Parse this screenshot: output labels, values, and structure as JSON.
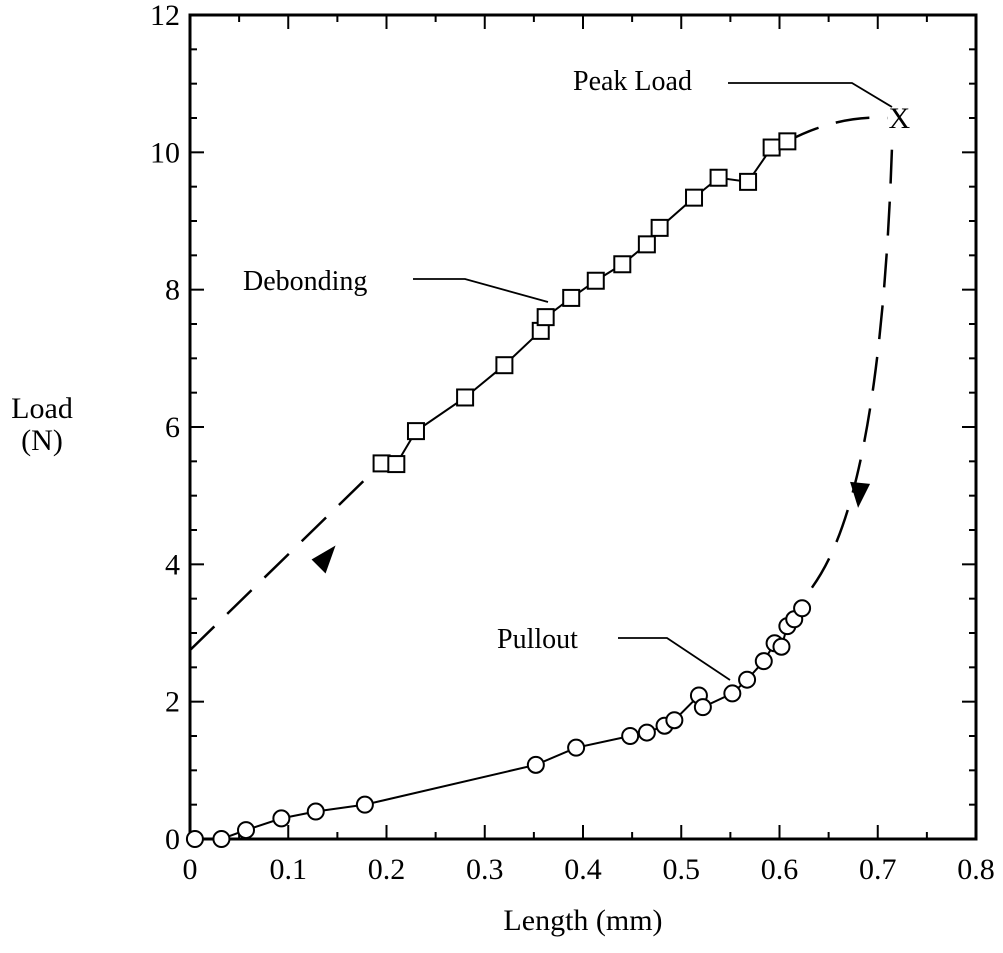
{
  "chart_data": {
    "type": "scatter",
    "title": "",
    "xlabel": "Length (mm)",
    "ylabel": [
      "Load",
      "(N)"
    ],
    "xlim": [
      0,
      0.8
    ],
    "ylim": [
      0,
      12
    ],
    "xticks": [
      "0",
      "0.1",
      "0.2",
      "0.3",
      "0.4",
      "0.5",
      "0.6",
      "0.7",
      "0.8"
    ],
    "yticks": [
      "0",
      "2",
      "4",
      "6",
      "8",
      "10",
      "12"
    ],
    "grid": false,
    "series": [
      {
        "marker": "square",
        "points": [
          [
            0.195,
            5.47
          ],
          [
            0.21,
            5.46
          ],
          [
            0.23,
            5.94
          ],
          [
            0.28,
            6.43
          ],
          [
            0.32,
            6.9
          ],
          [
            0.357,
            7.4
          ],
          [
            0.362,
            7.6
          ],
          [
            0.388,
            7.88
          ],
          [
            0.413,
            8.13
          ],
          [
            0.44,
            8.37
          ],
          [
            0.465,
            8.66
          ],
          [
            0.478,
            8.9
          ],
          [
            0.513,
            9.34
          ],
          [
            0.538,
            9.63
          ],
          [
            0.568,
            9.57
          ],
          [
            0.592,
            10.07
          ],
          [
            0.608,
            10.16
          ]
        ]
      },
      {
        "marker": "circle",
        "points": [
          [
            0.005,
            0.0
          ],
          [
            0.032,
            0.0
          ],
          [
            0.057,
            0.13
          ],
          [
            0.093,
            0.3
          ],
          [
            0.128,
            0.4
          ],
          [
            0.178,
            0.5
          ],
          [
            0.352,
            1.08
          ],
          [
            0.393,
            1.33
          ],
          [
            0.448,
            1.5
          ],
          [
            0.465,
            1.55
          ],
          [
            0.483,
            1.65
          ],
          [
            0.493,
            1.73
          ],
          [
            0.518,
            2.09
          ],
          [
            0.522,
            1.92
          ],
          [
            0.552,
            2.12
          ],
          [
            0.567,
            2.32
          ],
          [
            0.584,
            2.59
          ],
          [
            0.595,
            2.85
          ],
          [
            0.602,
            2.8
          ],
          [
            0.608,
            3.1
          ],
          [
            0.615,
            3.2
          ],
          [
            0.623,
            3.36
          ]
        ]
      }
    ],
    "peak": {
      "x": 0.722,
      "y": 10.5,
      "symbol": "X"
    },
    "annotations": {
      "peak": "Peak Load",
      "debonding": "Debonding",
      "pullout": "Pullout"
    }
  }
}
